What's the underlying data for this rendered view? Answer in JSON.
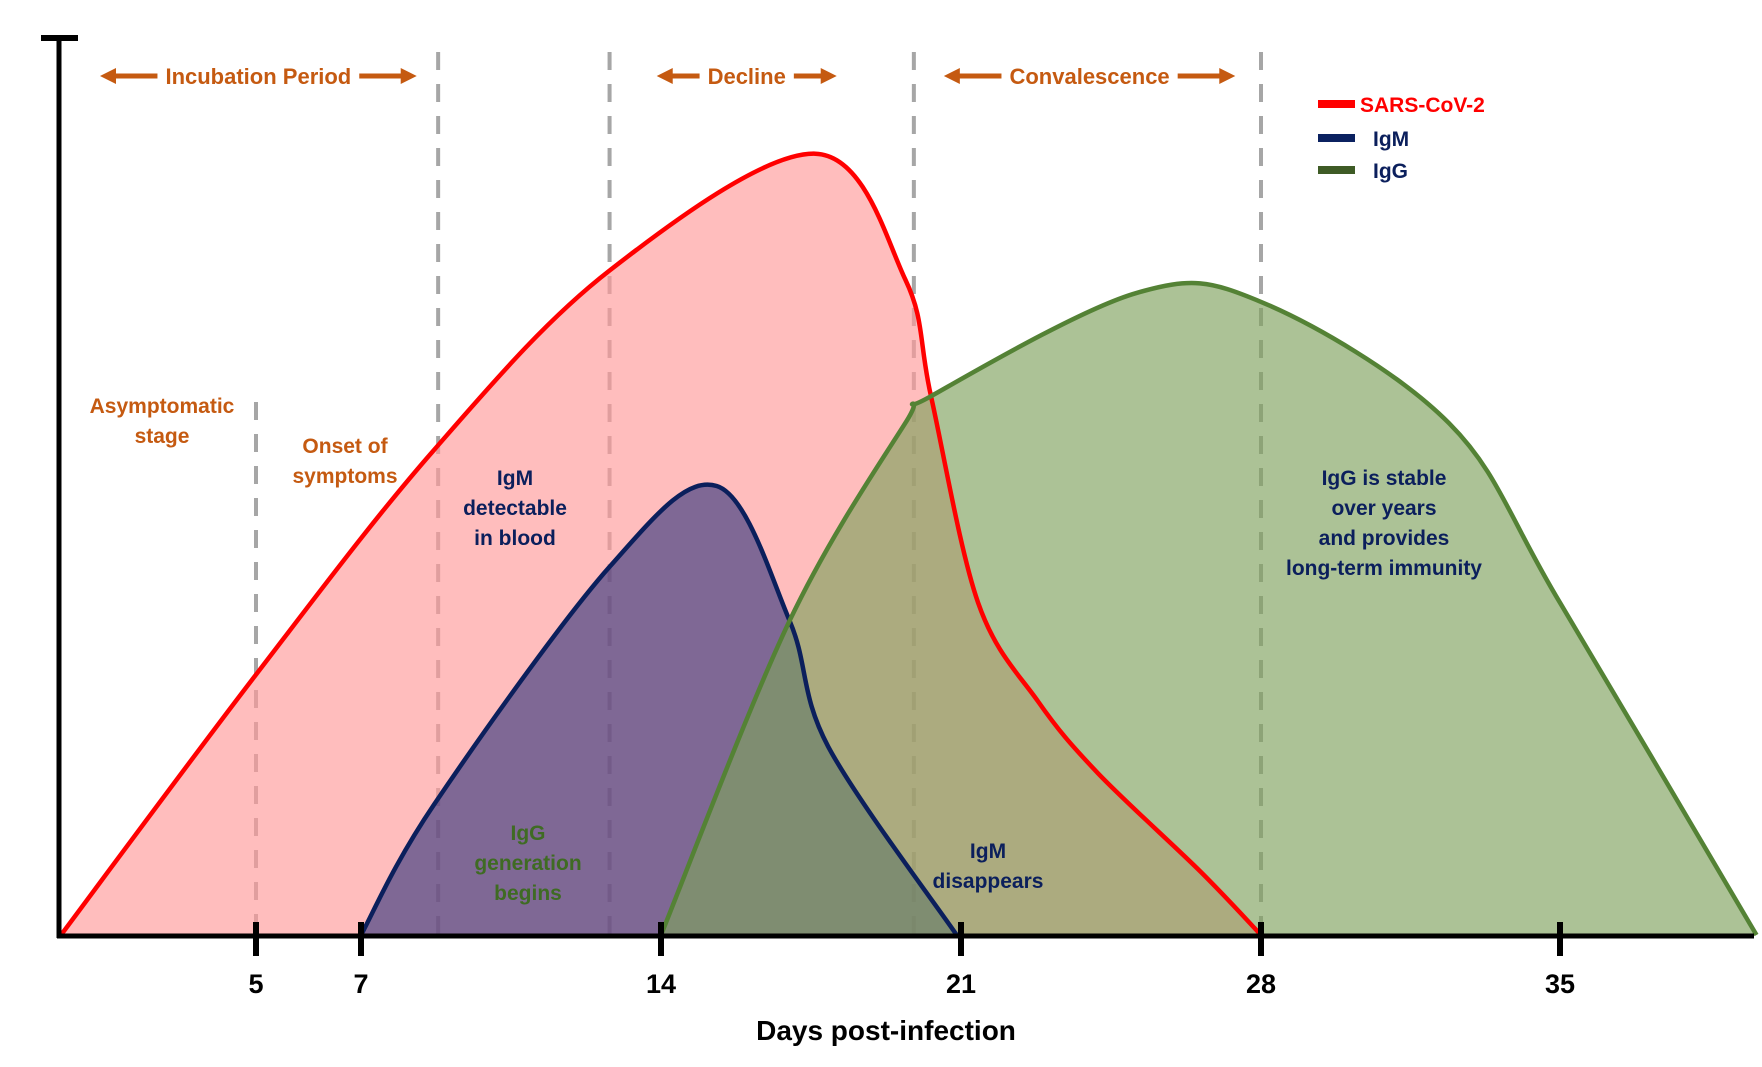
{
  "chart_data": {
    "type": "area",
    "title": "",
    "xlabel": "Days post-infection",
    "ylabel": "",
    "x_ticks": [
      5,
      7,
      14,
      21,
      28,
      35
    ],
    "x_tick_labels": [
      "5",
      "7",
      "14",
      "21",
      "28",
      "35"
    ],
    "xlim": [
      0,
      39.6
    ],
    "ylim": [
      0,
      1
    ],
    "grid": false,
    "legend_position": "top-right",
    "series": [
      {
        "name": "SARS-CoV-2",
        "color": "#ff0000",
        "fill": "#ff9a9a",
        "points": [
          [
            0,
            0
          ],
          [
            5,
            0.29
          ],
          [
            8.7,
            0.54
          ],
          [
            12.8,
            0.74
          ],
          [
            17.6,
            0.87
          ],
          [
            19.7,
            0.73
          ],
          [
            20.3,
            0.6
          ],
          [
            21.4,
            0.37
          ],
          [
            22.8,
            0.26
          ],
          [
            24.2,
            0.18
          ],
          [
            26.6,
            0.07
          ],
          [
            28,
            0
          ]
        ]
      },
      {
        "name": "IgM",
        "color": "#0b1f5c",
        "fill": "#2a2f7a",
        "points": [
          [
            7,
            0
          ],
          [
            8.7,
            0.145
          ],
          [
            12.8,
            0.41
          ],
          [
            15.3,
            0.5
          ],
          [
            17.0,
            0.35
          ],
          [
            17.9,
            0.21
          ],
          [
            20.9,
            0
          ]
        ]
      },
      {
        "name": "IgG",
        "color": "#548235",
        "fill": "#7fa25e",
        "points": [
          [
            14,
            0
          ],
          [
            17.0,
            0.35
          ],
          [
            19.7,
            0.57
          ],
          [
            20.3,
            0.6
          ],
          [
            25.1,
            0.715
          ],
          [
            28,
            0.705
          ],
          [
            32.4,
            0.57
          ],
          [
            35,
            0.37
          ],
          [
            39.6,
            0
          ]
        ]
      }
    ],
    "phase_dividers_days": [
      5,
      8.8,
      12.8,
      19.9,
      28
    ],
    "phases": [
      {
        "label": "Incubation Period",
        "from": 1,
        "to": 8.3
      },
      {
        "label": "Decline",
        "from": 13.9,
        "to": 18.1
      },
      {
        "label": "Convalescence",
        "from": 20.6,
        "to": 27.4
      }
    ],
    "annotations": [
      {
        "id": "asymptomatic",
        "lines": [
          "Asymptomatic",
          "stage"
        ],
        "style": "stage"
      },
      {
        "id": "onset",
        "lines": [
          "Onset of",
          "symptoms"
        ],
        "style": "stage"
      },
      {
        "id": "igm-detectable",
        "lines": [
          "IgM",
          "detectable",
          "in blood"
        ],
        "style": "blue"
      },
      {
        "id": "igg-generation",
        "lines": [
          "IgG",
          "generation",
          "begins"
        ],
        "style": "green"
      },
      {
        "id": "igm-disappears",
        "lines": [
          "IgM",
          "disappears"
        ],
        "style": "blue"
      },
      {
        "id": "igg-stable",
        "lines": [
          "IgG is stable",
          "over years",
          "and provides",
          "long-term immunity"
        ],
        "style": "blue"
      }
    ]
  },
  "legend": [
    {
      "label": "SARS-CoV-2",
      "color": "#ff0000",
      "text_color": "#ff0000"
    },
    {
      "label": "IgM",
      "color": "#0b2160",
      "text_color": "#0b1f5c"
    },
    {
      "label": "IgG",
      "color": "#3e5b25",
      "text_color": "#0b1f5c"
    }
  ]
}
